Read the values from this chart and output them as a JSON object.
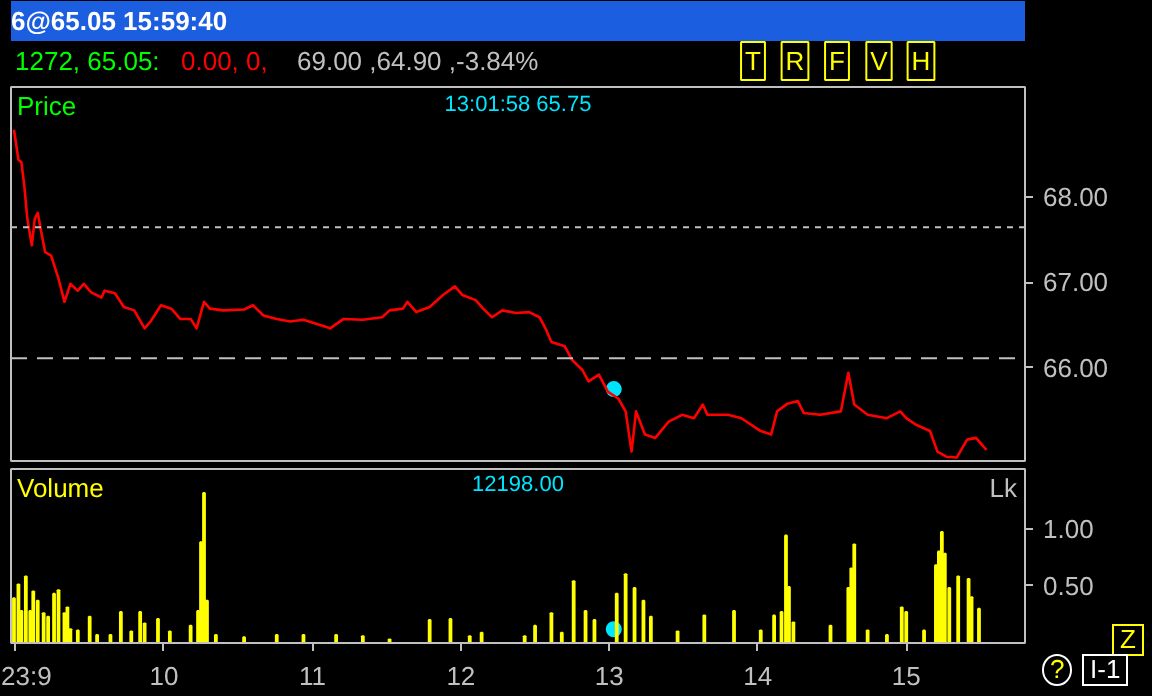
{
  "chart_data": [
    {
      "type": "line",
      "title": "6@65.05 15:59:40",
      "ylabel": "Price",
      "annotations": [
        "1272, 65.05:",
        "0.00, 0,",
        "69.00 ,64.90 ,-3.84%",
        "T",
        "R",
        "F",
        "V",
        "H",
        "13:01:58 65.75"
      ],
      "x": [
        8.99,
        9.02,
        9.04,
        9.06,
        9.08,
        9.11,
        9.13,
        9.15,
        9.17,
        9.2,
        9.24,
        9.29,
        9.33,
        9.37,
        9.42,
        9.46,
        9.51,
        9.58,
        9.6,
        9.67,
        9.73,
        9.8,
        9.87,
        9.91,
        9.98,
        10.05,
        10.11,
        10.18,
        10.22,
        10.27,
        10.31,
        10.4,
        10.54,
        10.6,
        10.67,
        10.76,
        10.85,
        10.94,
        11.03,
        11.12,
        11.21,
        11.34,
        11.47,
        11.52,
        11.61,
        11.64,
        11.7,
        11.79,
        11.88,
        11.96,
        12.01,
        12.1,
        12.15,
        12.21,
        12.28,
        12.37,
        12.46,
        12.53,
        12.57,
        12.61,
        12.7,
        12.75,
        12.82,
        12.86,
        12.93,
        12.99,
        13.06,
        13.11,
        13.15,
        13.18,
        13.24,
        13.31,
        13.4,
        13.49,
        13.57,
        13.63,
        13.66,
        13.8,
        13.89,
        14.02,
        14.09,
        14.13,
        14.2,
        14.27,
        14.31,
        14.42,
        14.56,
        14.61,
        14.65,
        14.74,
        14.87,
        14.96,
        15.0,
        15.07,
        15.16,
        15.21,
        15.27,
        15.34,
        15.41,
        15.47,
        15.54
      ],
      "series": [
        {
          "type": "scatter",
          "color": "#00e5ff",
          "x": [
            13.03
          ],
          "values": [
            65.75
          ]
        },
        {
          "color": "#ff0000",
          "values": [
            68.78,
            68.43,
            68.4,
            68.12,
            67.74,
            67.43,
            67.74,
            67.81,
            67.62,
            67.35,
            67.31,
            67.04,
            66.77,
            66.98,
            66.9,
            66.98,
            66.88,
            66.82,
            66.9,
            66.87,
            66.71,
            66.67,
            66.46,
            66.54,
            66.73,
            66.69,
            66.57,
            66.57,
            66.46,
            66.77,
            66.69,
            66.67,
            66.68,
            66.73,
            66.61,
            66.57,
            66.54,
            66.56,
            66.51,
            66.46,
            66.57,
            66.56,
            66.59,
            66.67,
            66.69,
            66.77,
            66.65,
            66.71,
            66.85,
            66.95,
            66.85,
            66.79,
            66.69,
            66.59,
            66.67,
            66.64,
            66.65,
            66.59,
            66.46,
            66.3,
            66.25,
            66.09,
            65.97,
            65.84,
            65.92,
            65.72,
            65.64,
            65.49,
            65.02,
            65.49,
            65.22,
            65.18,
            65.37,
            65.45,
            65.41,
            65.57,
            65.45,
            65.45,
            65.41,
            65.26,
            65.22,
            65.49,
            65.58,
            65.61,
            65.47,
            65.45,
            65.49,
            65.94,
            65.57,
            65.45,
            65.41,
            65.49,
            65.41,
            65.33,
            65.26,
            65.02,
            64.96,
            64.95,
            65.16,
            65.18,
            65.04
          ]
        }
      ],
      "xlim": [
        8.97,
        15.8
      ],
      "ylim": [
        64.91,
        69.28
      ],
      "yticks": [
        {
          "value": 66,
          "label": "66.00"
        },
        {
          "value": 67,
          "label": "67.00"
        },
        {
          "value": 68,
          "label": "68.00"
        }
      ],
      "ref_lines": [
        {
          "axis": "y",
          "value": 67.64,
          "color": "#c0c0c0",
          "line_style": "dotted"
        },
        {
          "axis": "y",
          "value": 66.11,
          "color": "#c0c0c0",
          "line_style": "dashed"
        }
      ],
      "grid": false,
      "tick_labels": "y"
    },
    {
      "type": "bar",
      "title": "Volume",
      "ylabel": "Lk",
      "annotations": [
        "12198.00",
        "Z",
        "?",
        "I-1"
      ],
      "x": [
        8.99,
        9.02,
        9.04,
        9.07,
        9.1,
        9.12,
        9.15,
        9.19,
        9.22,
        9.26,
        9.29,
        9.33,
        9.35,
        9.37,
        9.42,
        9.5,
        9.55,
        9.64,
        9.71,
        9.78,
        9.84,
        9.87,
        9.96,
        10.04,
        10.18,
        10.23,
        10.25,
        10.27,
        10.29,
        10.35,
        10.54,
        10.76,
        10.94,
        11.16,
        11.34,
        11.52,
        11.79,
        11.93,
        12.06,
        12.14,
        12.43,
        12.5,
        12.61,
        12.68,
        12.76,
        12.84,
        12.9,
        13.05,
        13.11,
        13.17,
        13.23,
        13.28,
        13.46,
        13.64,
        13.84,
        14.02,
        14.11,
        14.16,
        14.19,
        14.21,
        14.24,
        14.49,
        14.61,
        14.63,
        14.65,
        14.74,
        14.87,
        14.97,
        15.0,
        15.12,
        15.2,
        15.22,
        15.24,
        15.26,
        15.29,
        15.35,
        15.42,
        15.44,
        15.49
      ],
      "series": [
        {
          "type": "scatter",
          "color": "#00e5ff",
          "x": [
            13.03
          ],
          "values": [
            0.12
          ]
        },
        {
          "color": "#ffff00",
          "values": [
            0.39,
            0.51,
            0.28,
            0.58,
            0.28,
            0.45,
            0.37,
            0.26,
            0.23,
            0.43,
            0.46,
            0.26,
            0.31,
            0.12,
            0.11,
            0.23,
            0.07,
            0.07,
            0.27,
            0.1,
            0.27,
            0.17,
            0.21,
            0.1,
            0.15,
            0.28,
            0.88,
            1.31,
            0.37,
            0.07,
            0.05,
            0.07,
            0.07,
            0.07,
            0.06,
            0.03,
            0.2,
            0.21,
            0.06,
            0.09,
            0.06,
            0.15,
            0.26,
            0.09,
            0.54,
            0.28,
            0.2,
            0.43,
            0.6,
            0.48,
            0.37,
            0.23,
            0.1,
            0.24,
            0.28,
            0.11,
            0.24,
            0.27,
            0.94,
            0.49,
            0.18,
            0.15,
            0.48,
            0.65,
            0.86,
            0.11,
            0.07,
            0.31,
            0.27,
            0.11,
            0.68,
            0.8,
            0.97,
            0.78,
            0.48,
            0.58,
            0.56,
            0.4,
            0.3
          ]
        }
      ],
      "xlim": [
        8.97,
        15.8
      ],
      "ylim": [
        0,
        1.52
      ],
      "xticks": [
        {
          "value": 9,
          "label": "23:9"
        },
        10,
        11,
        12,
        13,
        14,
        15
      ],
      "yticks": [
        {
          "value": 0.5,
          "label": "0.50"
        },
        {
          "value": 1.0,
          "label": "1.00"
        }
      ],
      "grid": false
    }
  ]
}
